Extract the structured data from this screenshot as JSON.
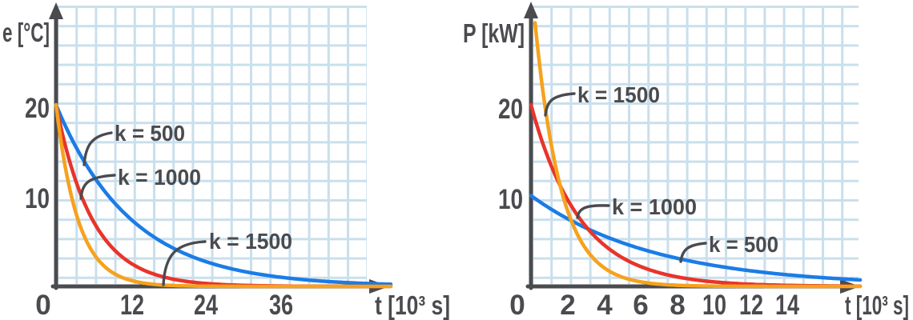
{
  "colors": {
    "background": "#ffffff",
    "grid": "#c9dfec",
    "axis": "#4a4b4f",
    "text": "#4a4b4f",
    "series_blue": "#1b7ce6",
    "series_red": "#e8342b",
    "series_orange": "#f6a21d"
  },
  "chart_data": [
    {
      "type": "line",
      "title": "",
      "ylabel": "e [°C]",
      "xlabel": "t [10³ s]",
      "x_ticks": [
        0,
        12,
        24,
        36
      ],
      "y_ticks": [
        10,
        20
      ],
      "xlim": [
        0,
        53
      ],
      "ylim": [
        0,
        31
      ],
      "grid": true,
      "legend_position": "inline-annotations",
      "series": [
        {
          "name": "k = 500",
          "color": "#1b7ce6",
          "model": "y = y0·exp(-t/tau)",
          "y0": 20,
          "tau": 12.0,
          "x": [
            0,
            6,
            12,
            18,
            24,
            30,
            36,
            42,
            48
          ],
          "values": [
            20,
            12.1,
            7.4,
            4.5,
            2.7,
            1.6,
            1.0,
            0.6,
            0.4
          ]
        },
        {
          "name": "k = 1000",
          "color": "#e8342b",
          "model": "y = y0·exp(-t/tau)",
          "y0": 20,
          "tau": 5.8,
          "x": [
            0,
            6,
            12,
            18,
            24,
            30,
            36
          ],
          "values": [
            20,
            7.1,
            2.5,
            0.9,
            0.3,
            0.1,
            0.04
          ]
        },
        {
          "name": "k = 1500",
          "color": "#f6a21d",
          "model": "y = y0·exp(-t/tau)",
          "y0": 20,
          "tau": 3.5,
          "x": [
            0,
            6,
            12,
            18,
            24
          ],
          "values": [
            20,
            3.6,
            0.7,
            0.1,
            0.02
          ]
        }
      ]
    },
    {
      "type": "line",
      "title": "",
      "ylabel": "P [kW]",
      "xlabel": "t [10³ s]",
      "x_ticks": [
        0,
        2,
        4,
        6,
        8,
        10,
        12,
        14
      ],
      "y_ticks": [
        10,
        20
      ],
      "xlim": [
        0,
        18
      ],
      "ylim": [
        0,
        31
      ],
      "grid": true,
      "legend_position": "inline-annotations",
      "series": [
        {
          "name": "k = 500",
          "color": "#1b7ce6",
          "model": "y = y0·exp(-t/tau)",
          "y0": 10,
          "tau": 6.8,
          "x": [
            0,
            2,
            4,
            6,
            8,
            10,
            12,
            14,
            16
          ],
          "values": [
            10,
            7.5,
            5.6,
            4.1,
            3.1,
            2.3,
            1.7,
            1.3,
            1.0
          ]
        },
        {
          "name": "k = 1000",
          "color": "#e8342b",
          "model": "y = y0·exp(-t/tau)",
          "y0": 20,
          "tau": 2.7,
          "x": [
            0,
            2,
            4,
            6,
            8,
            10,
            12,
            14,
            16
          ],
          "values": [
            20,
            9.5,
            4.5,
            2.2,
            1.0,
            0.5,
            0.2,
            0.1,
            0.05
          ]
        },
        {
          "name": "k = 1500",
          "color": "#f6a21d",
          "model": "y = y0·exp(-t/tau)",
          "y0": 34,
          "tau": 1.42,
          "x": [
            0,
            2,
            4,
            6,
            8,
            10
          ],
          "values": [
            34,
            8.3,
            2.0,
            0.5,
            0.1,
            0.03
          ]
        }
      ]
    }
  ]
}
